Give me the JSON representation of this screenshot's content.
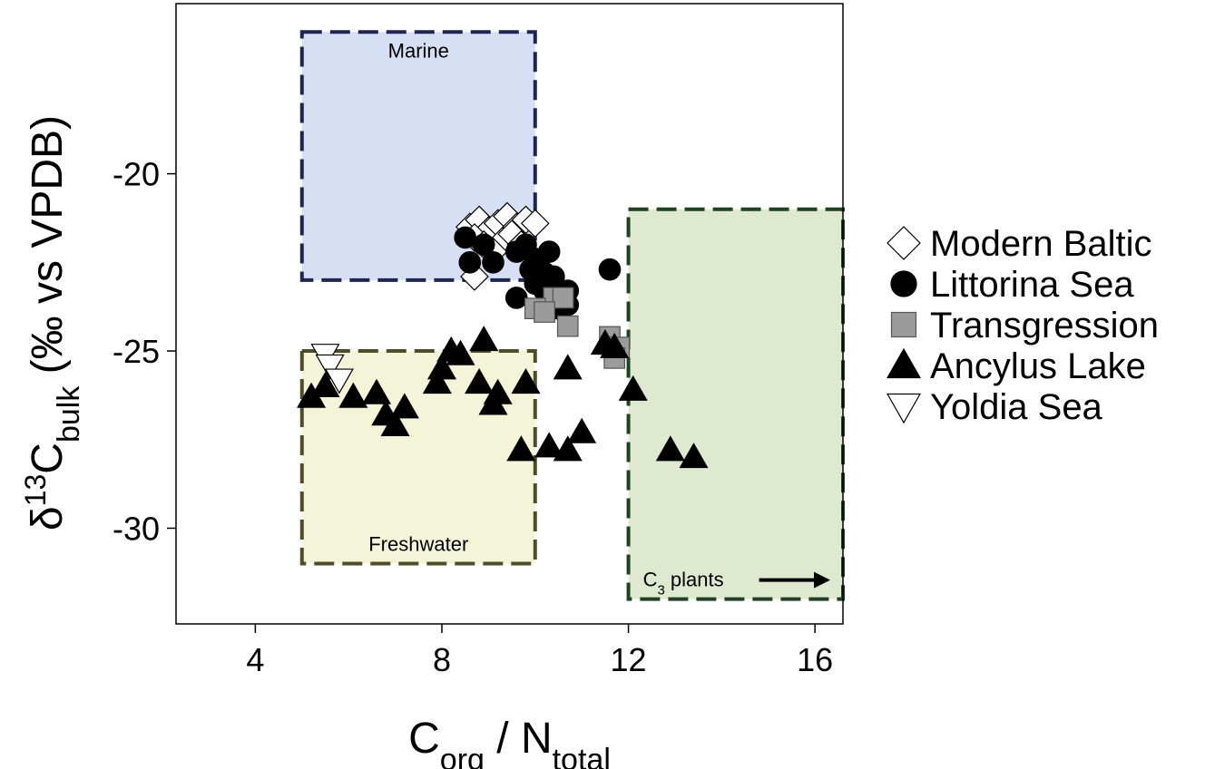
{
  "chart_data": {
    "type": "scatter",
    "xlabel": {
      "main": "C",
      "sub1": "org",
      "mid": " / N",
      "sub2": "total"
    },
    "ylabel": {
      "pre": "δ",
      "sup": "13",
      "main": "C",
      "sub": "bulk",
      "post": " (‰ vs VPDB)"
    },
    "xlim": [
      2.3,
      16.6
    ],
    "ylim": [
      -32.7,
      -15.2
    ],
    "xticks": [
      4,
      8,
      12,
      16
    ],
    "yticks": [
      -20,
      -25,
      -30
    ],
    "grid": false,
    "legend_position": "right",
    "regions": [
      {
        "name": "Marine",
        "label": "Marine",
        "x": [
          5,
          10
        ],
        "y": [
          -23,
          -16
        ],
        "fill": "#d6dff4",
        "stroke": "#1c2650",
        "label_pos": "top"
      },
      {
        "name": "Freshwater",
        "label": "Freshwater",
        "x": [
          5,
          10
        ],
        "y": [
          -31,
          -25
        ],
        "fill": "#f3f4d8",
        "stroke": "#4d4d26",
        "label_pos": "bottom"
      },
      {
        "name": "C3 plants",
        "label": "C",
        "label_sub": "3",
        "label_post": " plants",
        "x": [
          12,
          16.6
        ],
        "y": [
          -32,
          -21
        ],
        "fill": "#dfe9cf",
        "stroke": "#1d4320",
        "label_pos": "bottom",
        "arrow": true
      }
    ],
    "series": [
      {
        "name": "Modern Baltic",
        "marker": "diamond-open",
        "points": [
          [
            8.6,
            -21.5
          ],
          [
            8.8,
            -21.3
          ],
          [
            9.0,
            -21.6
          ],
          [
            8.7,
            -21.8
          ],
          [
            9.2,
            -21.4
          ],
          [
            9.4,
            -21.2
          ],
          [
            9.6,
            -21.5
          ],
          [
            9.8,
            -21.3
          ],
          [
            10.0,
            -21.4
          ],
          [
            9.3,
            -21.9
          ],
          [
            9.5,
            -21.7
          ],
          [
            8.9,
            -22.0
          ],
          [
            9.1,
            -22.2
          ],
          [
            9.7,
            -22.0
          ],
          [
            8.7,
            -22.9
          ]
        ]
      },
      {
        "name": "Littorina Sea",
        "marker": "circle-filled",
        "points": [
          [
            8.5,
            -21.8
          ],
          [
            8.6,
            -22.5
          ],
          [
            8.9,
            -22.0
          ],
          [
            9.1,
            -22.5
          ],
          [
            9.6,
            -22.2
          ],
          [
            9.8,
            -22.0
          ],
          [
            10.0,
            -22.4
          ],
          [
            10.3,
            -22.2
          ],
          [
            9.9,
            -22.7
          ],
          [
            10.2,
            -22.8
          ],
          [
            10.0,
            -23.1
          ],
          [
            10.4,
            -22.9
          ],
          [
            10.2,
            -23.3
          ],
          [
            10.7,
            -23.3
          ],
          [
            9.6,
            -23.5
          ],
          [
            10.5,
            -23.8
          ],
          [
            11.6,
            -22.7
          ],
          [
            10.7,
            -23.7
          ]
        ]
      },
      {
        "name": "Transgression",
        "marker": "square-filled",
        "points": [
          [
            10.4,
            -23.5
          ],
          [
            10.6,
            -23.5
          ],
          [
            10.0,
            -23.8
          ],
          [
            10.2,
            -23.9
          ],
          [
            10.7,
            -24.3
          ],
          [
            11.6,
            -24.6
          ],
          [
            11.8,
            -24.9
          ],
          [
            11.7,
            -25.2
          ]
        ]
      },
      {
        "name": "Ancylus Lake",
        "marker": "triangle-filled",
        "points": [
          [
            5.2,
            -26.3
          ],
          [
            5.5,
            -26.0
          ],
          [
            6.1,
            -26.3
          ],
          [
            6.6,
            -26.2
          ],
          [
            6.8,
            -26.8
          ],
          [
            7.0,
            -27.1
          ],
          [
            7.2,
            -26.6
          ],
          [
            7.9,
            -25.9
          ],
          [
            8.0,
            -25.5
          ],
          [
            8.2,
            -25.0
          ],
          [
            8.4,
            -25.1
          ],
          [
            8.8,
            -25.9
          ],
          [
            8.9,
            -24.7
          ],
          [
            9.1,
            -26.5
          ],
          [
            9.2,
            -26.2
          ],
          [
            9.8,
            -25.9
          ],
          [
            9.7,
            -27.8
          ],
          [
            10.3,
            -27.7
          ],
          [
            10.7,
            -25.5
          ],
          [
            10.7,
            -27.8
          ],
          [
            11.0,
            -27.3
          ],
          [
            11.5,
            -24.8
          ],
          [
            11.7,
            -24.9
          ],
          [
            12.1,
            -26.1
          ],
          [
            12.9,
            -27.8
          ],
          [
            13.4,
            -28.0
          ]
        ]
      },
      {
        "name": "Yoldia Sea",
        "marker": "triangle-open-down",
        "points": [
          [
            5.5,
            -25.1
          ],
          [
            5.6,
            -25.4
          ],
          [
            5.8,
            -25.8
          ]
        ]
      }
    ]
  },
  "colors": {
    "axis": "#000000",
    "filled_marker": "#000000",
    "transgression_marker": "#9b9b9b",
    "open_marker_fill": "#ffffff"
  }
}
